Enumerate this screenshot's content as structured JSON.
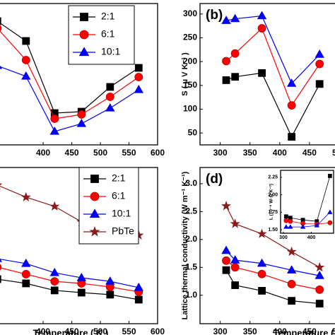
{
  "chart_data": [
    {
      "type": "line",
      "x": [
        320,
        370,
        420,
        467,
        517,
        567
      ],
      "xlim": [
        290,
        600
      ],
      "xticks": [
        400,
        450,
        500,
        550,
        600
      ],
      "ylim": [
        0,
        10
      ],
      "legend": "upper right",
      "series": [
        {
          "name": "2:1",
          "color": "#000000",
          "marker": "square",
          "values": [
            8.75,
            7.35,
            2.25,
            2.35,
            4.1,
            5.45
          ]
        },
        {
          "name": "6:1",
          "color": "#ff0000",
          "marker": "circle",
          "values": [
            8.25,
            6.0,
            1.85,
            2.15,
            3.4,
            4.8
          ]
        },
        {
          "name": "10:1",
          "color": "#0000ff",
          "marker": "triangle",
          "values": [
            5.6,
            4.85,
            0.95,
            1.5,
            2.6,
            3.9
          ]
        }
      ]
    },
    {
      "type": "line",
      "title": "(b)",
      "ylabel": "S ( μ V K⁻¹ )",
      "x": [
        310,
        325,
        370,
        420,
        467
      ],
      "xlim": [
        266,
        500
      ],
      "xticks": [
        300,
        350,
        400,
        450,
        500
      ],
      "ylim": [
        25,
        322
      ],
      "yticks": [
        50,
        100,
        150,
        200,
        250,
        300
      ],
      "series": [
        {
          "name": "2:1",
          "color": "#000000",
          "marker": "square",
          "values": [
            161,
            168,
            176,
            42,
            153
          ]
        },
        {
          "name": "6:1",
          "color": "#ff0000",
          "marker": "circle",
          "values": [
            201,
            217,
            270,
            108,
            195
          ]
        },
        {
          "name": "10:1",
          "color": "#0000ff",
          "marker": "triangle",
          "values": [
            286,
            290,
            296,
            154,
            215
          ]
        }
      ]
    },
    {
      "type": "line",
      "xlabel": "Temperature ( K )",
      "x": [
        320,
        370,
        420,
        467,
        517,
        567
      ],
      "xlim": [
        290,
        600
      ],
      "xticks": [
        400,
        450,
        500,
        550,
        600
      ],
      "ylim": [
        0,
        10
      ],
      "legend": "upper right",
      "series": [
        {
          "name": "2:1",
          "color": "#000000",
          "marker": "square",
          "values": [
            2.85,
            2.58,
            2.13,
            1.99,
            1.86,
            1.54
          ]
        },
        {
          "name": "6:1",
          "color": "#ff0000",
          "marker": "circle",
          "values": [
            3.62,
            3.17,
            2.71,
            2.58,
            2.35,
            2.04
          ]
        },
        {
          "name": "10:1",
          "color": "#0000ff",
          "marker": "triangle",
          "values": [
            4.16,
            3.85,
            3.26,
            2.94,
            2.71,
            2.31
          ]
        },
        {
          "name": "PbTe",
          "color": "#8b1a1a",
          "marker": "star",
          "values": [
            8.87,
            8.1,
            7.51,
            6.52,
            6.15,
            5.66
          ]
        }
      ]
    },
    {
      "type": "line",
      "title": "(d)",
      "xlabel": "Temperature ( K )",
      "ylabel": "Lattice thermal conductivity (W m⁻¹ K⁻¹)",
      "x": [
        310,
        325,
        370,
        420,
        467
      ],
      "xlim": [
        266,
        500
      ],
      "xticks": [
        300,
        350,
        400,
        450,
        500
      ],
      "ylim": [
        0.49,
        3.29
      ],
      "yticks": [
        {
          "value": 1,
          "label": "1.0"
        },
        1.5,
        {
          "value": 2,
          "label": "2.0"
        },
        2.5,
        {
          "value": 3,
          "label": "3.0"
        }
      ],
      "series": [
        {
          "name": "2:1",
          "color": "#000000",
          "marker": "square",
          "values": [
            1.45,
            1.18,
            1.08,
            0.9,
            0.85
          ]
        },
        {
          "name": "6:1",
          "color": "#ff0000",
          "marker": "circle",
          "values": [
            1.62,
            1.5,
            1.38,
            1.2,
            1.1
          ]
        },
        {
          "name": "10:1",
          "color": "#0000ff",
          "marker": "triangle",
          "values": [
            1.8,
            1.63,
            1.57,
            1.45,
            1.35
          ]
        },
        {
          "name": "PbTe",
          "color": "#8b1a1a",
          "marker": "star",
          "values": [
            2.6,
            2.28,
            2.1,
            1.78,
            1.5
          ]
        }
      ]
    },
    {
      "type": "line",
      "ylabel": "L (10⁻⁸ W·Ω K⁻²)",
      "x": [
        310,
        325,
        370,
        420,
        467
      ],
      "xlim": [
        290,
        480
      ],
      "xticks": [
        300,
        400
      ],
      "ylim": [
        1.45,
        2.35
      ],
      "yticks": [
        {
          "value": 1.5,
          "label": "1.50"
        },
        1.75,
        {
          "value": 2,
          "label": "2.00"
        },
        2.25
      ],
      "series": [
        {
          "name": "2:1",
          "color": "#000000",
          "marker": "square",
          "values": [
            1.69,
            1.67,
            1.64,
            1.62,
            2.27
          ]
        },
        {
          "name": "6:1",
          "color": "#ff0000",
          "marker": "circle",
          "values": [
            1.63,
            1.62,
            1.59,
            1.58,
            1.6
          ]
        },
        {
          "name": "10:1",
          "color": "#0000ff",
          "marker": "triangle",
          "values": [
            1.54,
            1.54,
            1.54,
            1.56,
            1.75
          ]
        }
      ]
    }
  ]
}
